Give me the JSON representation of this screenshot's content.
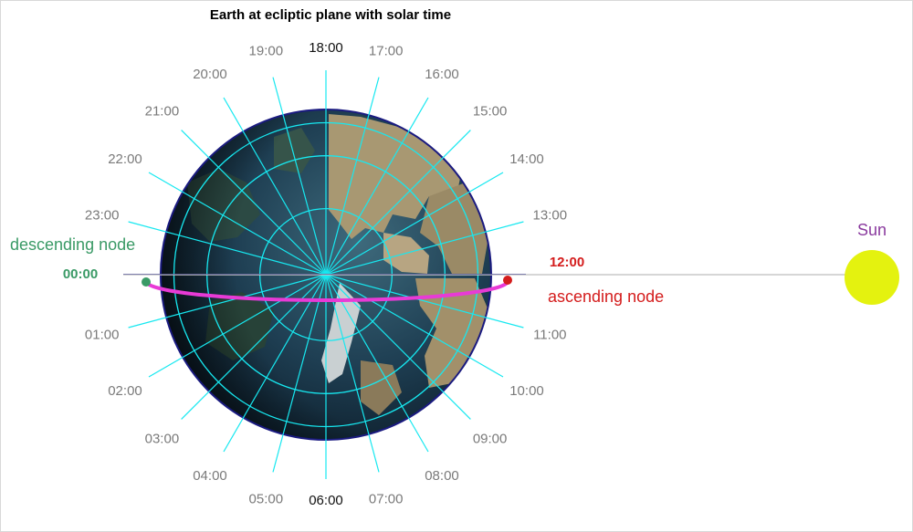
{
  "title": "Earth at ecliptic plane with solar time",
  "sun_label": "Sun",
  "ascending_label": "ascending node",
  "descending_label": "descending node",
  "hours": [
    "00:00",
    "01:00",
    "02:00",
    "03:00",
    "04:00",
    "05:00",
    "06:00",
    "07:00",
    "08:00",
    "09:00",
    "10:00",
    "11:00",
    "12:00",
    "13:00",
    "14:00",
    "15:00",
    "16:00",
    "17:00",
    "18:00",
    "19:00",
    "20:00",
    "21:00",
    "22:00",
    "23:00"
  ],
  "colors": {
    "title": "#5c1a6e",
    "hour_text": "#7a7a7a",
    "hour_key_text": "#111111",
    "noon": "#d41c1c",
    "midnight": "#3a9a66",
    "sun": "#e4f20f",
    "sun_label": "#8a3a9e",
    "ascending": "#d41c1c",
    "descending": "#3a9a66",
    "orbit": "#e83ad6",
    "grid": "#17e8f0",
    "earth_rim": "#1a1a80",
    "sun_line": "#c8c8c8"
  },
  "icons": {
    "earth": "earth-globe-icon",
    "sun": "sun-disc-icon"
  }
}
